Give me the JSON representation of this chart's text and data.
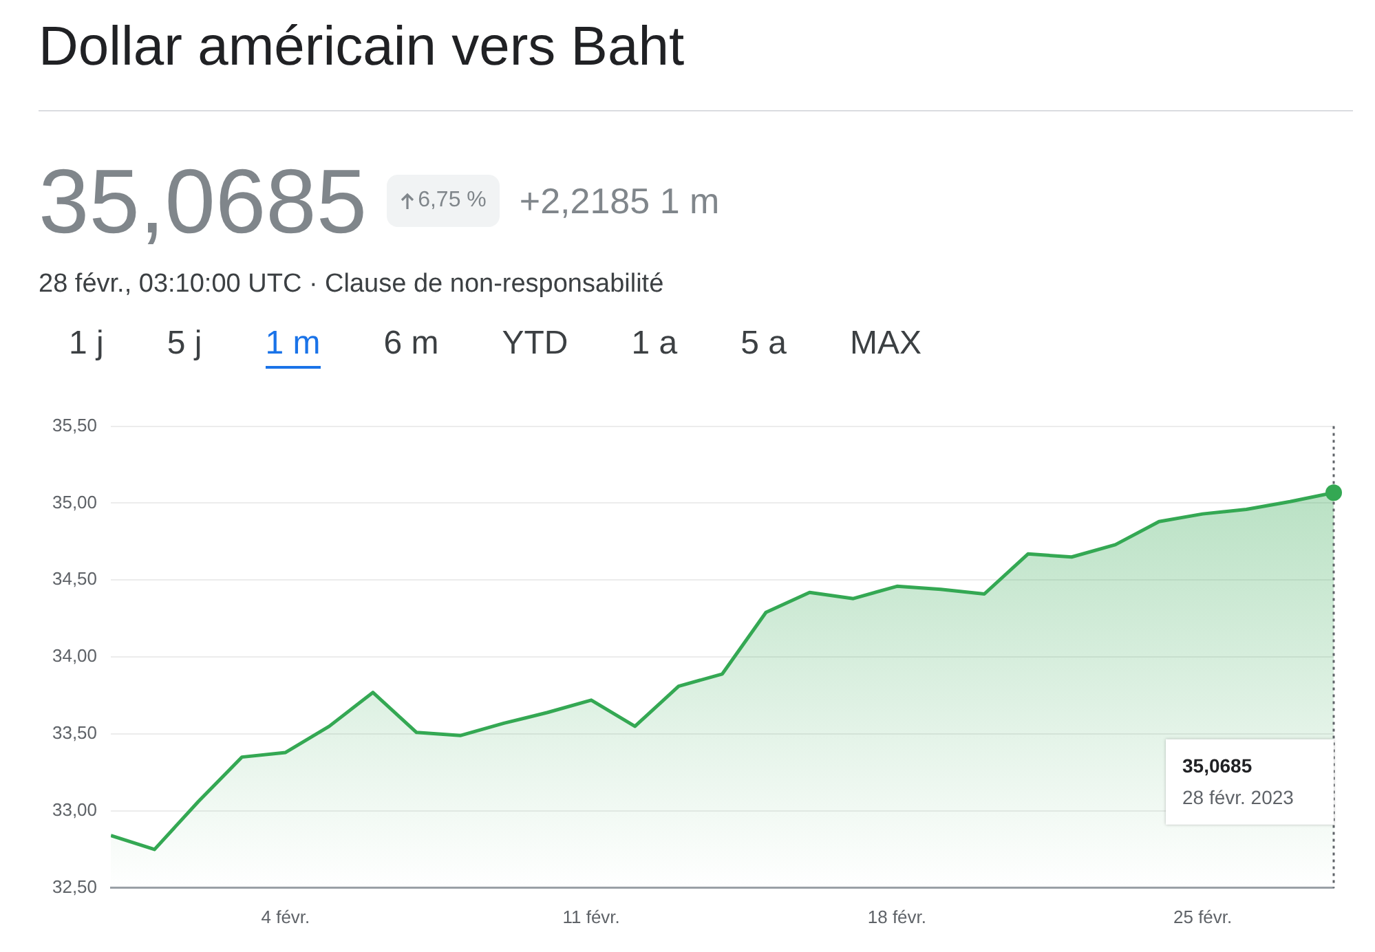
{
  "chart_data": {
    "type": "area",
    "title": "Dollar américain vers Baht",
    "subtitle": "28 févr., 03:10:00 UTC · Clause de non-responsabilité",
    "x": [
      "2023-01-31",
      "2023-02-01",
      "2023-02-02",
      "2023-02-03",
      "2023-02-04",
      "2023-02-05",
      "2023-02-06",
      "2023-02-07",
      "2023-02-08",
      "2023-02-09",
      "2023-02-10",
      "2023-02-11",
      "2023-02-12",
      "2023-02-13",
      "2023-02-14",
      "2023-02-15",
      "2023-02-16",
      "2023-02-17",
      "2023-02-18",
      "2023-02-19",
      "2023-02-20",
      "2023-02-21",
      "2023-02-22",
      "2023-02-23",
      "2023-02-24",
      "2023-02-25",
      "2023-02-26",
      "2023-02-27",
      "2023-02-28"
    ],
    "series": [
      {
        "color": "#34a853",
        "values": [
          32.84,
          32.75,
          33.06,
          33.35,
          33.38,
          33.55,
          33.77,
          33.51,
          33.49,
          33.57,
          33.64,
          33.72,
          33.55,
          33.81,
          33.89,
          34.29,
          34.42,
          34.38,
          34.46,
          34.44,
          34.41,
          34.67,
          34.65,
          34.73,
          34.88,
          34.93,
          34.96,
          35.01,
          35.0685
        ]
      }
    ],
    "xlim": [
      "2023-01-31",
      "2023-02-28"
    ],
    "xticks": [
      {
        "value": "2023-02-04",
        "label": "4 févr."
      },
      {
        "value": "2023-02-11",
        "label": "11 févr."
      },
      {
        "value": "2023-02-18",
        "label": "18 févr."
      },
      {
        "value": "2023-02-25",
        "label": "25 févr."
      }
    ],
    "ylim": [
      32.5,
      35.5
    ],
    "yticks": [
      {
        "value": 32.5,
        "label": "32,50"
      },
      {
        "value": 33,
        "label": "33,00"
      },
      {
        "value": 33.5,
        "label": "33,50"
      },
      {
        "value": 34,
        "label": "34,00"
      },
      {
        "value": 34.5,
        "label": "34,50"
      },
      {
        "value": 35,
        "label": "35,00"
      },
      {
        "value": 35.5,
        "label": "35,50"
      }
    ],
    "grid": "y",
    "ref_lines": [
      {
        "axis": "x",
        "value": "2023-02-28",
        "color": "#5f6368",
        "line_style": "dotted"
      }
    ],
    "annotations": [
      "35,0685",
      "6,75 %",
      "+2,2185 1 m",
      "1 j",
      "5 j",
      "1 m",
      "6 m",
      "YTD",
      "1 a",
      "5 a",
      "MAX",
      "35,0685\n28 févr. 2023"
    ]
  }
}
